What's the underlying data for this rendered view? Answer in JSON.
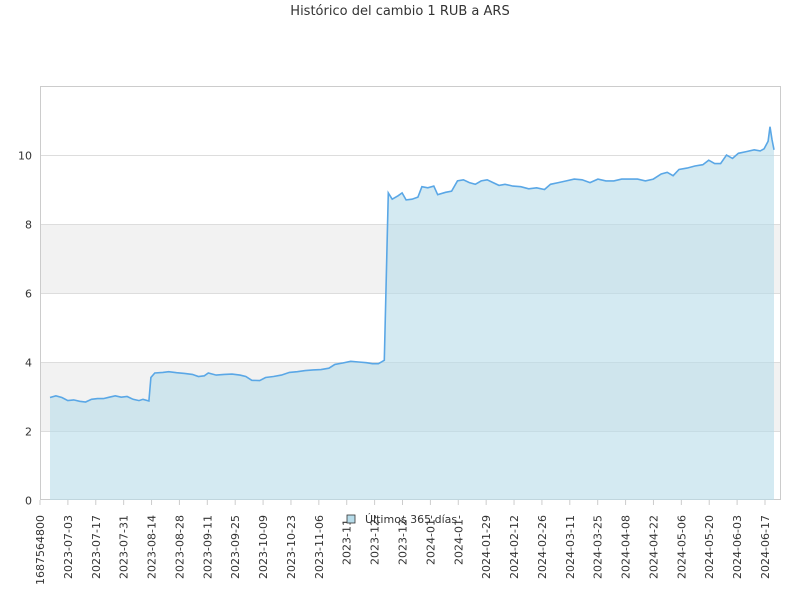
{
  "chart_data": {
    "type": "area",
    "title": "Histórico del cambio 1 RUB a ARS",
    "xlabel": "",
    "ylabel": "",
    "ylim": [
      0,
      12
    ],
    "y_ticks": [
      0,
      2,
      4,
      6,
      8,
      10
    ],
    "x_tick_labels": [
      "1687564800",
      "2023-07-03",
      "2023-07-17",
      "2023-07-31",
      "2023-08-14",
      "2023-08-28",
      "2023-09-11",
      "2023-09-25",
      "2023-10-09",
      "2023-10-23",
      "2023-11-06",
      "2023-11-",
      "2023-12-",
      "2023-12-",
      "2024-01-",
      "2024-01-",
      "2024-01-29",
      "2024-02-12",
      "2024-02-26",
      "2024-03-11",
      "2024-03-25",
      "2024-04-08",
      "2024-04-22",
      "2024-05-06",
      "2024-05-20",
      "2024-06-03",
      "2024-06-17"
    ],
    "grid": true,
    "alternating_bands": true,
    "legend_position": "bottom-center",
    "colors": {
      "line": "#5aa7e6",
      "fill": "#b7dcea",
      "band": "#f2f2f2",
      "grid": "#dddddd"
    },
    "series": [
      {
        "name": "Últimos 365 días",
        "points": [
          [
            "2023-06-24",
            2.97
          ],
          [
            "2023-06-27",
            3.02
          ],
          [
            "2023-06-30",
            2.97
          ],
          [
            "2023-07-03",
            2.88
          ],
          [
            "2023-07-06",
            2.9
          ],
          [
            "2023-07-09",
            2.86
          ],
          [
            "2023-07-12",
            2.84
          ],
          [
            "2023-07-15",
            2.92
          ],
          [
            "2023-07-18",
            2.94
          ],
          [
            "2023-07-21",
            2.94
          ],
          [
            "2023-07-24",
            2.98
          ],
          [
            "2023-07-27",
            3.02
          ],
          [
            "2023-07-30",
            2.98
          ],
          [
            "2023-08-02",
            3.0
          ],
          [
            "2023-08-05",
            2.92
          ],
          [
            "2023-08-08",
            2.88
          ],
          [
            "2023-08-10",
            2.92
          ],
          [
            "2023-08-13",
            2.87
          ],
          [
            "2023-08-14",
            3.55
          ],
          [
            "2023-08-16",
            3.68
          ],
          [
            "2023-08-20",
            3.7
          ],
          [
            "2023-08-23",
            3.72
          ],
          [
            "2023-08-27",
            3.69
          ],
          [
            "2023-08-31",
            3.67
          ],
          [
            "2023-09-04",
            3.64
          ],
          [
            "2023-09-07",
            3.58
          ],
          [
            "2023-09-10",
            3.6
          ],
          [
            "2023-09-12",
            3.68
          ],
          [
            "2023-09-16",
            3.62
          ],
          [
            "2023-09-20",
            3.64
          ],
          [
            "2023-09-24",
            3.65
          ],
          [
            "2023-09-28",
            3.62
          ],
          [
            "2023-10-01",
            3.58
          ],
          [
            "2023-10-04",
            3.47
          ],
          [
            "2023-10-08",
            3.46
          ],
          [
            "2023-10-11",
            3.55
          ],
          [
            "2023-10-15",
            3.58
          ],
          [
            "2023-10-19",
            3.62
          ],
          [
            "2023-10-23",
            3.7
          ],
          [
            "2023-10-27",
            3.72
          ],
          [
            "2023-10-31",
            3.75
          ],
          [
            "2023-11-04",
            3.77
          ],
          [
            "2023-11-08",
            3.78
          ],
          [
            "2023-11-12",
            3.82
          ],
          [
            "2023-11-15",
            3.93
          ],
          [
            "2023-11-19",
            3.97
          ],
          [
            "2023-11-23",
            4.02
          ],
          [
            "2023-11-27",
            4.0
          ],
          [
            "2023-12-01",
            3.98
          ],
          [
            "2023-12-04",
            3.95
          ],
          [
            "2023-12-07",
            3.95
          ],
          [
            "2023-12-10",
            4.05
          ],
          [
            "2023-12-12",
            8.9
          ],
          [
            "2023-12-14",
            8.72
          ],
          [
            "2023-12-17",
            8.82
          ],
          [
            "2023-12-19",
            8.9
          ],
          [
            "2023-12-21",
            8.7
          ],
          [
            "2023-12-24",
            8.72
          ],
          [
            "2023-12-27",
            8.78
          ],
          [
            "2023-12-29",
            9.08
          ],
          [
            "2024-01-01",
            9.05
          ],
          [
            "2024-01-04",
            9.1
          ],
          [
            "2024-01-06",
            8.85
          ],
          [
            "2024-01-10",
            8.92
          ],
          [
            "2024-01-13",
            8.95
          ],
          [
            "2024-01-16",
            9.25
          ],
          [
            "2024-01-19",
            9.28
          ],
          [
            "2024-01-22",
            9.2
          ],
          [
            "2024-01-25",
            9.15
          ],
          [
            "2024-01-28",
            9.25
          ],
          [
            "2024-01-31",
            9.28
          ],
          [
            "2024-02-03",
            9.2
          ],
          [
            "2024-02-06",
            9.12
          ],
          [
            "2024-02-09",
            9.15
          ],
          [
            "2024-02-13",
            9.1
          ],
          [
            "2024-02-17",
            9.08
          ],
          [
            "2024-02-21",
            9.02
          ],
          [
            "2024-02-25",
            9.05
          ],
          [
            "2024-02-29",
            9.0
          ],
          [
            "2024-03-03",
            9.15
          ],
          [
            "2024-03-07",
            9.2
          ],
          [
            "2024-03-11",
            9.25
          ],
          [
            "2024-03-15",
            9.3
          ],
          [
            "2024-03-19",
            9.28
          ],
          [
            "2024-03-23",
            9.2
          ],
          [
            "2024-03-27",
            9.3
          ],
          [
            "2024-03-31",
            9.25
          ],
          [
            "2024-04-04",
            9.25
          ],
          [
            "2024-04-08",
            9.3
          ],
          [
            "2024-04-12",
            9.3
          ],
          [
            "2024-04-16",
            9.3
          ],
          [
            "2024-04-20",
            9.25
          ],
          [
            "2024-04-24",
            9.3
          ],
          [
            "2024-04-28",
            9.45
          ],
          [
            "2024-05-01",
            9.5
          ],
          [
            "2024-05-04",
            9.4
          ],
          [
            "2024-05-07",
            9.58
          ],
          [
            "2024-05-11",
            9.62
          ],
          [
            "2024-05-15",
            9.68
          ],
          [
            "2024-05-19",
            9.72
          ],
          [
            "2024-05-22",
            9.85
          ],
          [
            "2024-05-25",
            9.75
          ],
          [
            "2024-05-28",
            9.75
          ],
          [
            "2024-05-31",
            10.0
          ],
          [
            "2024-06-03",
            9.9
          ],
          [
            "2024-06-06",
            10.05
          ],
          [
            "2024-06-10",
            10.1
          ],
          [
            "2024-06-14",
            10.15
          ],
          [
            "2024-06-17",
            10.12
          ],
          [
            "2024-06-19",
            10.18
          ],
          [
            "2024-06-21",
            10.4
          ],
          [
            "2024-06-22",
            10.82
          ],
          [
            "2024-06-23",
            10.45
          ],
          [
            "2024-06-24",
            10.15
          ]
        ]
      }
    ]
  }
}
